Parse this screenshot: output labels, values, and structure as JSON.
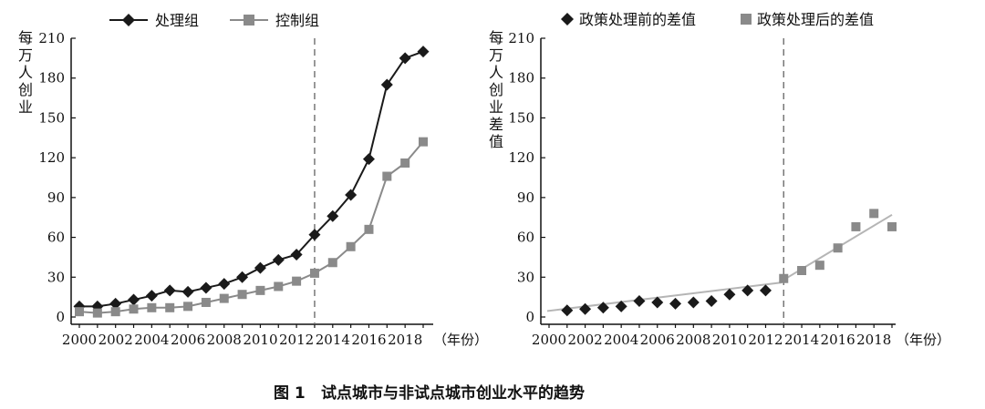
{
  "caption": {
    "label": "图 1",
    "text": "试点城市与非试点城市创业水平的趋势"
  },
  "chart_data": [
    {
      "type": "line",
      "x": [
        2000,
        2001,
        2002,
        2003,
        2004,
        2005,
        2006,
        2007,
        2008,
        2009,
        2010,
        2011,
        2012,
        2013,
        2014,
        2015,
        2016,
        2017,
        2018,
        2019
      ],
      "series": [
        {
          "name": "处理组",
          "color": "#1a1a1a",
          "marker": "diamond",
          "values": [
            8,
            8,
            10,
            13,
            16,
            20,
            19,
            22,
            25,
            30,
            37,
            43,
            47,
            62,
            76,
            92,
            119,
            175,
            195,
            200
          ]
        },
        {
          "name": "控制组",
          "color": "#8a8a8a",
          "marker": "square",
          "values": [
            4,
            3,
            4,
            6,
            7,
            7,
            8,
            11,
            14,
            17,
            20,
            23,
            27,
            33,
            41,
            53,
            66,
            106,
            116,
            132
          ]
        }
      ],
      "ylabel": "每万人创业",
      "ylim": [
        0,
        210
      ],
      "yticks": [
        0,
        30,
        60,
        90,
        120,
        150,
        180,
        210
      ],
      "xticks": [
        2000,
        2002,
        2004,
        2006,
        2008,
        2010,
        2012,
        2014,
        2016,
        2018
      ],
      "x_unit_label": "（年份）",
      "policy_year": 2013,
      "grid": false,
      "legend": "top"
    },
    {
      "type": "scatter",
      "series": [
        {
          "name": "政策处理前的差值",
          "color": "#1a1a1a",
          "marker": "diamond",
          "x": [
            2001,
            2002,
            2003,
            2004,
            2005,
            2006,
            2007,
            2008,
            2009,
            2010,
            2011,
            2012
          ],
          "values": [
            5,
            6,
            7,
            8,
            12,
            11,
            10,
            11,
            12,
            17,
            20,
            20
          ]
        },
        {
          "name": "政策处理后的差值",
          "color": "#8a8a8a",
          "marker": "square",
          "x": [
            2013,
            2014,
            2015,
            2016,
            2017,
            2018,
            2019
          ],
          "values": [
            29,
            35,
            39,
            52,
            68,
            78,
            68
          ]
        }
      ],
      "trend_lines": [
        {
          "from": [
            1999.9,
            4.5
          ],
          "to": [
            2012.9,
            26
          ]
        },
        {
          "from": [
            2013,
            28
          ],
          "to": [
            2019,
            77
          ]
        }
      ],
      "ylabel": "每万人创业差值",
      "ylim": [
        0,
        210
      ],
      "yticks": [
        0,
        30,
        60,
        90,
        120,
        150,
        180,
        210
      ],
      "xticks": [
        2000,
        2002,
        2004,
        2006,
        2008,
        2010,
        2012,
        2014,
        2016,
        2018
      ],
      "x_unit_label": "（年份）",
      "policy_year": 2013,
      "grid": false,
      "legend": "top"
    }
  ]
}
